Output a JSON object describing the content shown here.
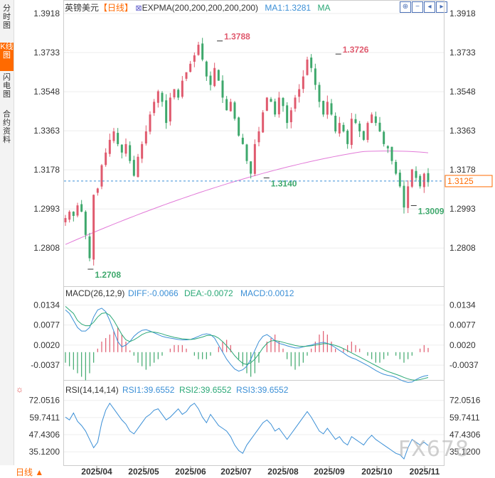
{
  "left_tabs": [
    {
      "label": "分时图",
      "active": false
    },
    {
      "label": "K线图",
      "active": true
    },
    {
      "label": "闪电图",
      "active": false
    },
    {
      "label": "合约资料",
      "active": false
    }
  ],
  "header": {
    "instrument": "英镑美元",
    "period": "【日线】",
    "indicator": "EXPMA(200,200,200,200,200)",
    "ma1": "MA1:1.3281",
    "ma": "MA"
  },
  "toolbar": {
    "icons": [
      "zoom-in-icon",
      "zoom-out-icon",
      "move-left-icon",
      "move-right-icon"
    ]
  },
  "current_price": "1.3125",
  "period_selector": "日线 ▲",
  "watermark": "FX678",
  "colors": {
    "up": "#e05a6e",
    "down": "#3ea86c",
    "ma_line": "#e27ad8",
    "diff": "#3b8fd6",
    "dea": "#2aa876",
    "accent": "#ff6a00"
  },
  "x_labels": [
    "2025/04",
    "2025/05",
    "2025/06",
    "2025/07",
    "2025/08",
    "2025/09",
    "2025/10",
    "2025/11"
  ],
  "chart_data": [
    {
      "type": "candlestick",
      "title": "英镑美元 【日线】",
      "yticks": [
        1.3918,
        1.3733,
        1.3548,
        1.3363,
        1.3178,
        1.2993,
        1.2808
      ],
      "ylim": [
        1.2708,
        1.3918
      ],
      "annotations": [
        {
          "label": "1.2708",
          "value": 1.2708,
          "type": "low"
        },
        {
          "label": "1.3788",
          "value": 1.3788,
          "type": "high"
        },
        {
          "label": "1.3140",
          "value": 1.314,
          "type": "low"
        },
        {
          "label": "1.3726",
          "value": 1.3726,
          "type": "high"
        },
        {
          "label": "1.3009",
          "value": 1.3009,
          "type": "low"
        }
      ],
      "current_price": 1.3125,
      "ma_start": 1.2825,
      "ma_end": 1.3295,
      "close_path": [
        1.295,
        1.298,
        1.296,
        1.301,
        1.298,
        1.287,
        1.276,
        1.306,
        1.309,
        1.32,
        1.326,
        1.332,
        1.336,
        1.33,
        1.326,
        1.33,
        1.322,
        1.315,
        1.324,
        1.33,
        1.336,
        1.344,
        1.35,
        1.355,
        1.35,
        1.34,
        1.352,
        1.356,
        1.352,
        1.36,
        1.364,
        1.368,
        1.372,
        1.377,
        1.37,
        1.362,
        1.358,
        1.366,
        1.36,
        1.352,
        1.346,
        1.35,
        1.342,
        1.334,
        1.33,
        1.322,
        1.316,
        1.33,
        1.336,
        1.345,
        1.352,
        1.35,
        1.344,
        1.352,
        1.348,
        1.34,
        1.346,
        1.352,
        1.356,
        1.362,
        1.37,
        1.366,
        1.358,
        1.35,
        1.344,
        1.35,
        1.344,
        1.336,
        1.34,
        1.336,
        1.33,
        1.342,
        1.34,
        1.336,
        1.332,
        1.34,
        1.344,
        1.34,
        1.336,
        1.33,
        1.328,
        1.322,
        1.316,
        1.31,
        1.3,
        1.31,
        1.318,
        1.314,
        1.31,
        1.316,
        1.312
      ]
    },
    {
      "type": "bar",
      "title": "MACD(26,12,9)",
      "legend": [
        "DIFF:-0.0066",
        "DEA:-0.0072",
        "MACD:0.0012"
      ],
      "yticks": [
        0.0134,
        0.0077,
        0.002,
        -0.0037
      ],
      "ylim": [
        -0.0065,
        0.0145
      ],
      "macd": [
        -0.003,
        -0.004,
        -0.005,
        -0.006,
        -0.007,
        -0.008,
        -0.006,
        -0.003,
        0.001,
        0.003,
        0.004,
        0.005,
        0.006,
        0.007,
        0.005,
        0.003,
        0.0005,
        -0.001,
        -0.003,
        -0.004,
        -0.005,
        -0.004,
        -0.003,
        -0.002,
        -0.001,
        0.0,
        0.001,
        0.002,
        0.002,
        0.002,
        0.001,
        0.0,
        -0.001,
        -0.002,
        -0.002,
        -0.002,
        -0.001,
        0.0,
        0.0015,
        0.003,
        0.0035,
        0.002,
        0.0,
        -0.002,
        -0.004,
        -0.006,
        -0.007,
        -0.006,
        -0.003,
        0.0,
        0.003,
        0.004,
        0.005,
        0.003,
        0.001,
        -0.002,
        -0.004,
        -0.005,
        -0.004,
        -0.003,
        -0.001,
        0.001,
        0.003,
        0.005,
        0.006,
        0.005,
        0.003,
        0.001,
        0.0,
        0.001,
        0.002,
        0.003,
        0.002,
        0.001,
        0.0,
        -0.001,
        -0.002,
        -0.003,
        -0.003,
        -0.002,
        -0.001,
        0.0,
        -0.001,
        -0.002,
        -0.003,
        -0.002,
        -0.001,
        0.0,
        0.001,
        0.002,
        0.0012
      ],
      "diff": [
        0.012,
        0.011,
        0.009,
        0.007,
        0.006,
        0.006,
        0.007,
        0.01,
        0.012,
        0.0125,
        0.0115,
        0.009,
        0.006,
        0.003,
        0.0015,
        0.002,
        0.003,
        0.0045,
        0.0055,
        0.0062,
        0.0064,
        0.006,
        0.0055,
        0.005,
        0.0045,
        0.0042,
        0.004,
        0.0038,
        0.0036,
        0.0035,
        0.0035,
        0.0036,
        0.004,
        0.0045,
        0.005,
        0.0052,
        0.005,
        0.004,
        0.002,
        0.0,
        -0.002,
        -0.0035,
        -0.0048,
        -0.0054,
        -0.005,
        -0.004,
        -0.002,
        0.0005,
        0.003,
        0.0045,
        0.005,
        0.0042,
        0.0032,
        0.0025,
        0.0022,
        0.0018,
        0.0015,
        0.0012,
        0.0012,
        0.0015,
        0.0018,
        0.002,
        0.0024,
        0.0026,
        0.0028,
        0.0025,
        0.002,
        0.0013,
        0.0005,
        -0.0002,
        -0.001,
        -0.0016,
        -0.002,
        -0.0026,
        -0.0032,
        -0.0038,
        -0.0045,
        -0.0052,
        -0.0058,
        -0.0063,
        -0.0066,
        -0.0068,
        -0.0072,
        -0.0078,
        -0.0083,
        -0.0086,
        -0.0085,
        -0.0078,
        -0.0072,
        -0.0068,
        -0.0066
      ],
      "dea": [
        0.013,
        0.012,
        0.011,
        0.009,
        0.008,
        0.0075,
        0.0075,
        0.0085,
        0.01,
        0.011,
        0.0112,
        0.0105,
        0.009,
        0.007,
        0.005,
        0.0035,
        0.003,
        0.0035,
        0.0042,
        0.005,
        0.0055,
        0.0058,
        0.0057,
        0.0055,
        0.0052,
        0.0048,
        0.0045,
        0.0042,
        0.004,
        0.0038,
        0.0037,
        0.0036,
        0.0037,
        0.004,
        0.0043,
        0.0047,
        0.0048,
        0.0046,
        0.004,
        0.003,
        0.0018,
        0.0005,
        -0.001,
        -0.0022,
        -0.0032,
        -0.0035,
        -0.003,
        -0.002,
        -0.0005,
        0.0012,
        0.0025,
        0.0032,
        0.0033,
        0.0031,
        0.0028,
        0.0025,
        0.0022,
        0.0019,
        0.0017,
        0.0016,
        0.0017,
        0.0018,
        0.002,
        0.0022,
        0.0024,
        0.0024,
        0.0022,
        0.0019,
        0.0015,
        0.001,
        0.0004,
        -0.0002,
        -0.0008,
        -0.0014,
        -0.002,
        -0.0026,
        -0.0032,
        -0.0038,
        -0.0044,
        -0.005,
        -0.0055,
        -0.0059,
        -0.0063,
        -0.0067,
        -0.0072,
        -0.0076,
        -0.0079,
        -0.008,
        -0.0078,
        -0.0075,
        -0.0072
      ]
    },
    {
      "type": "line",
      "title": "RSI(14,14,14)",
      "legend": [
        "RSI1:39.6552",
        "RSI2:39.6552",
        "RSI3:39.6552"
      ],
      "yticks": [
        72.0516,
        59.7411,
        47.4306,
        35.12
      ],
      "ytick_labels": [
        "72.0516",
        "59.7411",
        "47.4306",
        "35.1200"
      ],
      "ylim": [
        27.0,
        76.0
      ],
      "rsi": [
        60,
        58,
        63,
        57,
        54,
        50,
        44,
        38,
        42,
        56,
        65,
        70,
        66,
        62,
        58,
        55,
        50,
        48,
        52,
        56,
        60,
        62,
        65,
        66,
        62,
        58,
        60,
        63,
        66,
        62,
        64,
        68,
        70,
        66,
        60,
        56,
        62,
        58,
        54,
        52,
        50,
        46,
        40,
        36,
        34,
        40,
        44,
        48,
        52,
        56,
        58,
        55,
        50,
        52,
        48,
        44,
        48,
        52,
        56,
        60,
        64,
        60,
        55,
        50,
        48,
        52,
        48,
        44,
        46,
        42,
        40,
        46,
        44,
        42,
        40,
        44,
        47,
        44,
        42,
        40,
        38,
        36,
        34,
        33,
        30,
        38,
        44,
        42,
        40,
        42,
        39.6552
      ]
    }
  ]
}
